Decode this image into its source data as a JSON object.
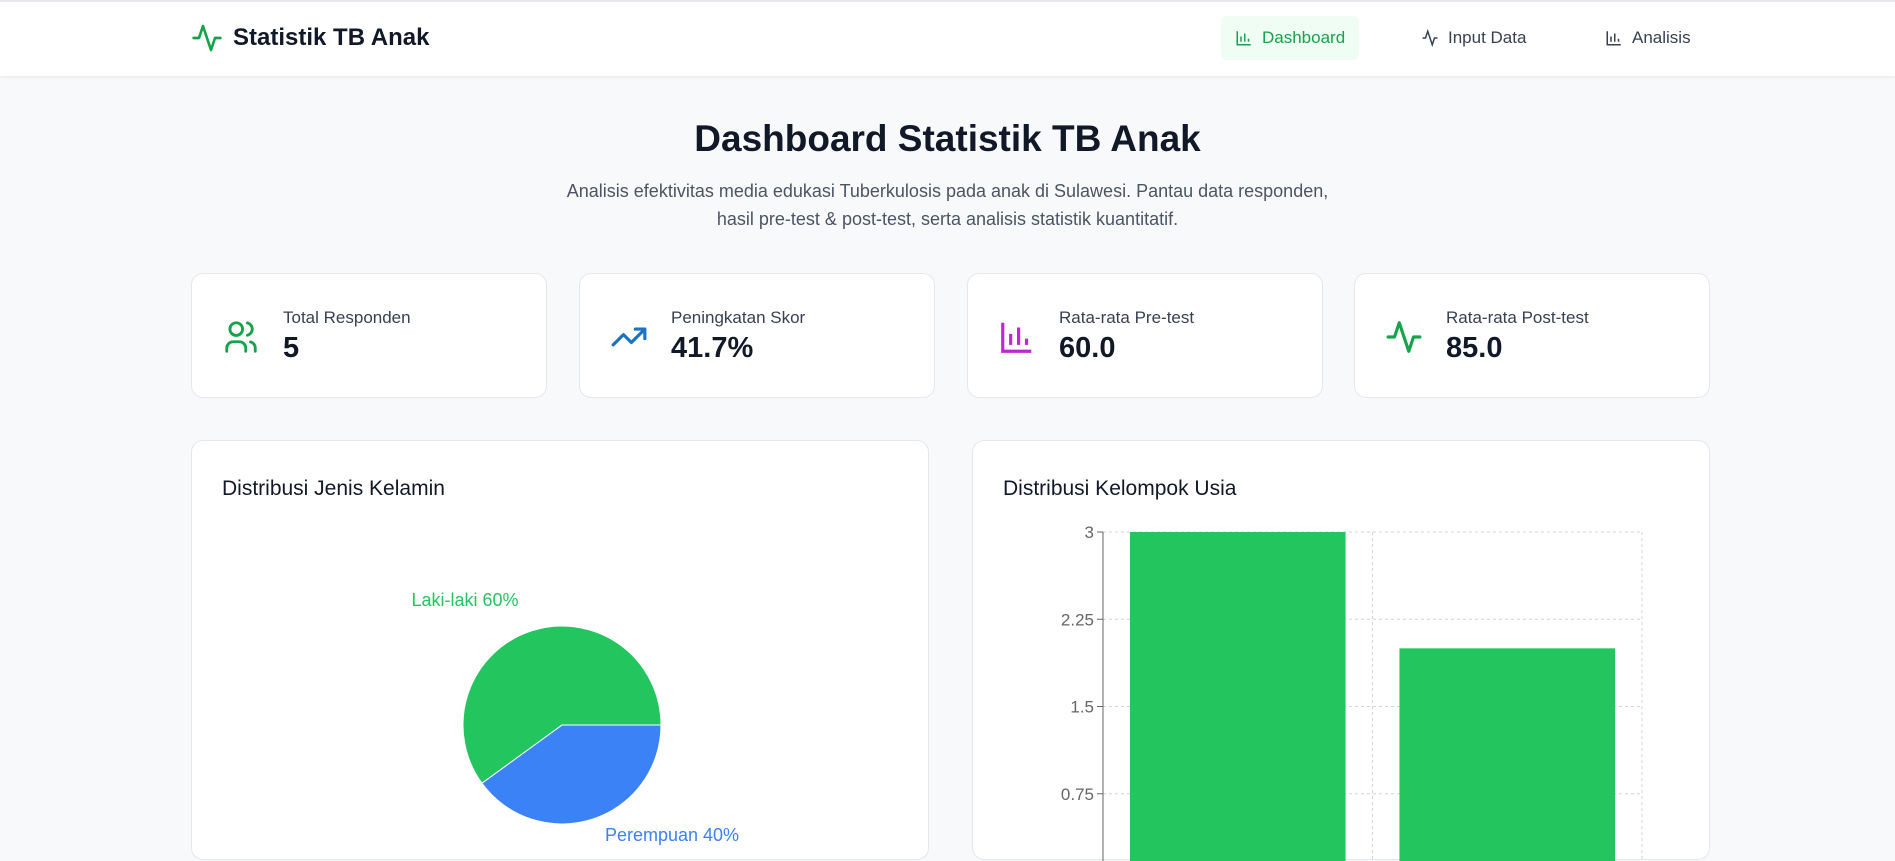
{
  "header": {
    "app_title": "Statistik TB Anak",
    "nav": [
      {
        "label": "Dashboard",
        "active": true
      },
      {
        "label": "Input Data"
      },
      {
        "label": "Analisis"
      }
    ]
  },
  "page": {
    "title": "Dashboard Statistik TB Anak",
    "subtitle_line1": "Analisis efektivitas media edukasi Tuberkulosis pada anak di Sulawesi. Pantau data responden,",
    "subtitle_line2": "hasil pre-test & post-test, serta analisis statistik kuantitatif."
  },
  "stats": [
    {
      "label": "Total Responden",
      "value": "5",
      "icon": "users-icon",
      "color": "#16a34a"
    },
    {
      "label": "Peningkatan Skor",
      "value": "41.7%",
      "icon": "trending-up-icon",
      "color": "#1d72c4"
    },
    {
      "label": "Rata-rata Pre-test",
      "value": "60.0",
      "icon": "bar-chart-icon",
      "color": "#c026d3"
    },
    {
      "label": "Rata-rata Post-test",
      "value": "85.0",
      "icon": "activity-icon",
      "color": "#16a34a"
    }
  ],
  "chart_data": [
    {
      "type": "pie",
      "title": "Distribusi Jenis Kelamin",
      "slices": [
        {
          "name": "Laki-laki",
          "value": 60,
          "label": "Laki-laki 60%",
          "color": "#22c55e"
        },
        {
          "name": "Perempuan",
          "value": 40,
          "label": "Perempuan 40%",
          "color": "#3b82f6"
        }
      ]
    },
    {
      "type": "bar",
      "title": "Distribusi Kelompok Usia",
      "values": [
        3,
        2
      ],
      "ylim": [
        0,
        3
      ],
      "yticks": [
        "0.75",
        "1.5",
        "2.25",
        "3"
      ],
      "grid": true,
      "color": "#22c55e"
    }
  ]
}
